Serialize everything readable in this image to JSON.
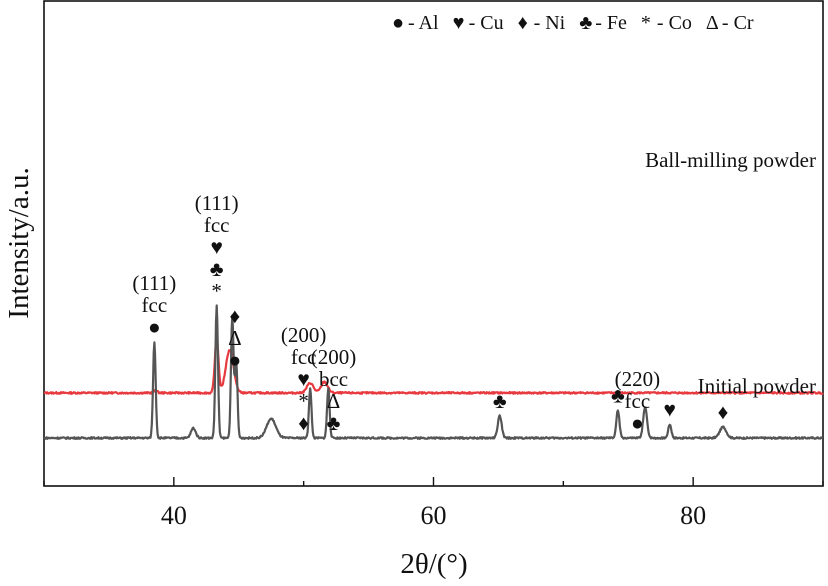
{
  "chart_data": {
    "type": "line",
    "xlabel": "2θ/(°)",
    "ylabel": "Intensity/a.u.",
    "xlim": [
      30,
      90
    ],
    "x_ticks": [
      40,
      60,
      80
    ],
    "x_tick_labels": [
      "40",
      "60",
      "80"
    ],
    "grid": false,
    "legend": {
      "placement": "top-right",
      "entries": [
        {
          "symbol": "●",
          "label": "- Al"
        },
        {
          "symbol": "♥",
          "label": "- Cu"
        },
        {
          "symbol": "♦",
          "label": "- Ni"
        },
        {
          "symbol": "♣",
          "label": "- Fe"
        },
        {
          "symbol": "*",
          "label": "- Co"
        },
        {
          "symbol": "Δ",
          "label": "- Cr"
        }
      ]
    },
    "series": [
      {
        "name": "Ball-milling powder",
        "color": "#e8393f",
        "baseline": 0.82,
        "peaks": [
          {
            "x": 38.6,
            "h": 0.05,
            "w": 0.12
          },
          {
            "x": 43.3,
            "h": 1.0,
            "w": 0.14
          },
          {
            "x": 44.3,
            "h": 0.78,
            "w": 0.3
          },
          {
            "x": 50.5,
            "h": 0.18,
            "w": 0.25
          },
          {
            "x": 51.6,
            "h": 0.2,
            "w": 0.25
          }
        ]
      },
      {
        "name": "Initial powder",
        "color": "#555555",
        "baseline": 0.0,
        "peaks": [
          {
            "x": 38.5,
            "h": 1.75,
            "w": 0.1
          },
          {
            "x": 41.5,
            "h": 0.18,
            "w": 0.18
          },
          {
            "x": 43.3,
            "h": 2.4,
            "w": 0.1
          },
          {
            "x": 44.5,
            "h": 2.2,
            "w": 0.1
          },
          {
            "x": 44.8,
            "h": 1.4,
            "w": 0.1
          },
          {
            "x": 47.5,
            "h": 0.35,
            "w": 0.35
          },
          {
            "x": 50.5,
            "h": 0.9,
            "w": 0.1
          },
          {
            "x": 51.9,
            "h": 0.9,
            "w": 0.1
          },
          {
            "x": 65.1,
            "h": 0.4,
            "w": 0.15
          },
          {
            "x": 74.2,
            "h": 0.5,
            "w": 0.12
          },
          {
            "x": 76.3,
            "h": 0.55,
            "w": 0.15
          },
          {
            "x": 78.2,
            "h": 0.25,
            "w": 0.12
          },
          {
            "x": 82.3,
            "h": 0.2,
            "w": 0.25
          }
        ]
      }
    ],
    "annotations": [
      {
        "x": 38.5,
        "series": "Initial powder",
        "lines": [
          "(111)",
          "fcc",
          "●"
        ]
      },
      {
        "x": 43.3,
        "series": "Initial powder",
        "lines": [
          "(111)",
          "fcc",
          "♥",
          "♣",
          "*"
        ]
      },
      {
        "x": 44.7,
        "series": "Initial powder",
        "lines": [
          "♦",
          "Δ",
          "●"
        ]
      },
      {
        "x": 50.0,
        "series": "Initial powder",
        "lines": [
          "(200)",
          "fcc",
          "♥",
          "*",
          "♦"
        ]
      },
      {
        "x": 52.3,
        "series": "Initial powder",
        "lines": [
          "(200)",
          "bcc",
          "Δ",
          "♣"
        ]
      },
      {
        "x": 65.1,
        "series": "Initial powder",
        "lines": [
          "♣"
        ]
      },
      {
        "x": 74.2,
        "series": "Initial powder",
        "lines": [
          "♣"
        ]
      },
      {
        "x": 75.7,
        "series": "Initial powder",
        "lines": [
          "(220)",
          "fcc",
          "●"
        ]
      },
      {
        "x": 78.2,
        "series": "Initial powder",
        "lines": [
          "♥"
        ]
      },
      {
        "x": 82.3,
        "series": "Initial powder",
        "lines": [
          "♦"
        ]
      }
    ]
  }
}
